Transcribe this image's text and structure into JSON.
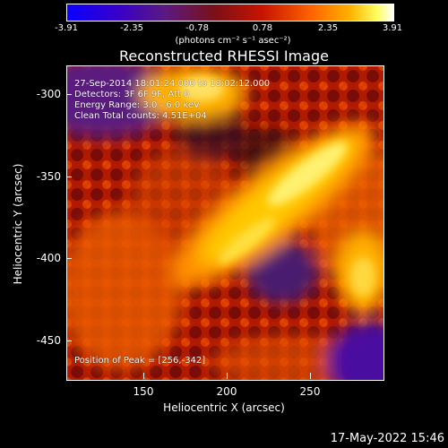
{
  "colorbar": {
    "ticks": [
      "-3.91",
      "-2.35",
      "-0.78",
      "0.78",
      "2.35",
      "3.91"
    ],
    "units": "(photons cm⁻² s⁻¹ asec⁻²)",
    "range": [
      -3.91,
      3.91
    ]
  },
  "plot": {
    "title": "Reconstructed RHESSI Image",
    "annotations": {
      "time": "27-Sep-2014 18:01:24.000 to 18:02:12.000",
      "detectors": "Detectors: 3F 6F 9F, Att 0",
      "energy": "Energy Range: 3.0 - 6.0 keV",
      "method": "Clean     Total counts: 4.51E+04",
      "peak": "Position of Peak = [256,-342]"
    },
    "xlabel": "Heliocentric X (arcsec)",
    "ylabel": "Heliocentric Y (arcsec)",
    "xticks": [
      "150",
      "200",
      "250"
    ],
    "yticks": [
      "-300",
      "-350",
      "-400",
      "-450"
    ],
    "xrange": [
      105,
      295
    ],
    "yrange": [
      -290,
      -475
    ]
  },
  "footer": {
    "date": "17-May-2022 15:46"
  }
}
